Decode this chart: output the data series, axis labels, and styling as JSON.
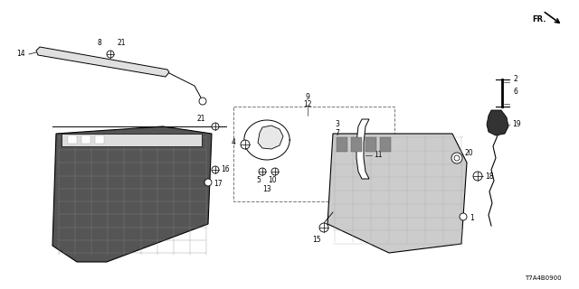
{
  "diagram_code": "T7A4B0900",
  "bg": "#ffffff",
  "lc": "#000000",
  "fig_w": 6.4,
  "fig_h": 3.2,
  "dpi": 100
}
